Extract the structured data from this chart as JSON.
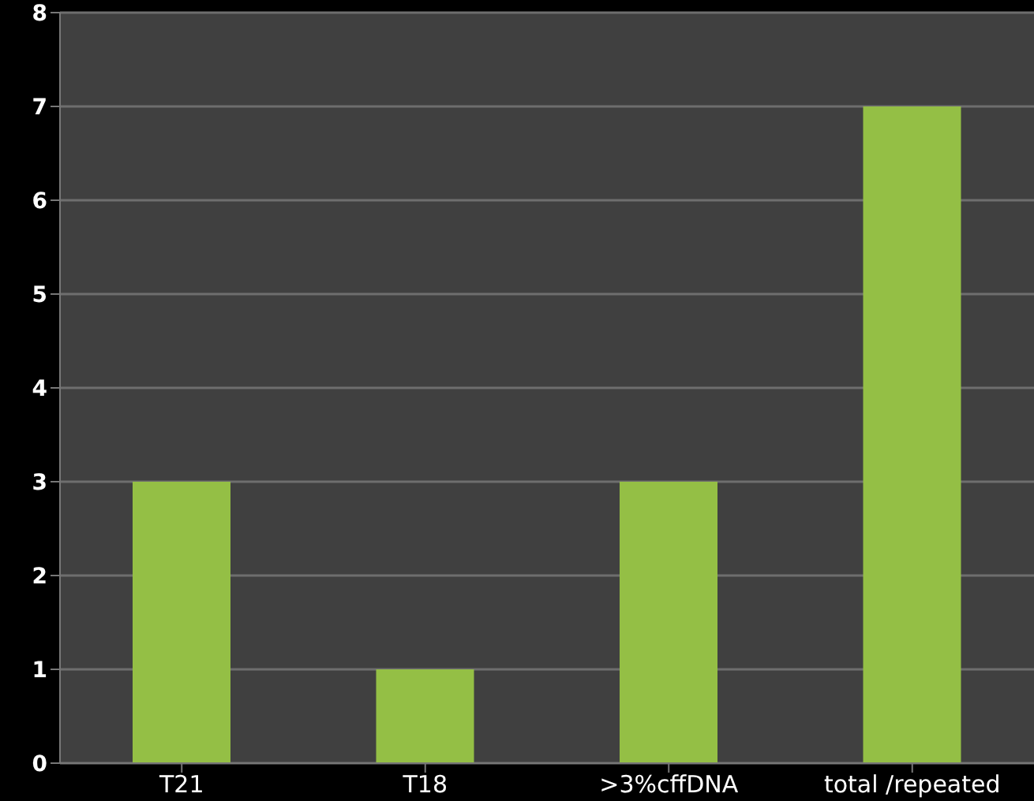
{
  "chart_data": {
    "type": "bar",
    "categories": [
      "T21",
      "T18",
      ">3%cffDNA",
      "total /repeated"
    ],
    "values": [
      3,
      1,
      3,
      7
    ],
    "color": "#94bf45",
    "ylim": [
      0,
      8
    ],
    "yticks": [
      0,
      1,
      2,
      3,
      4,
      5,
      6,
      7,
      8
    ],
    "grid": "y",
    "legend": false
  }
}
